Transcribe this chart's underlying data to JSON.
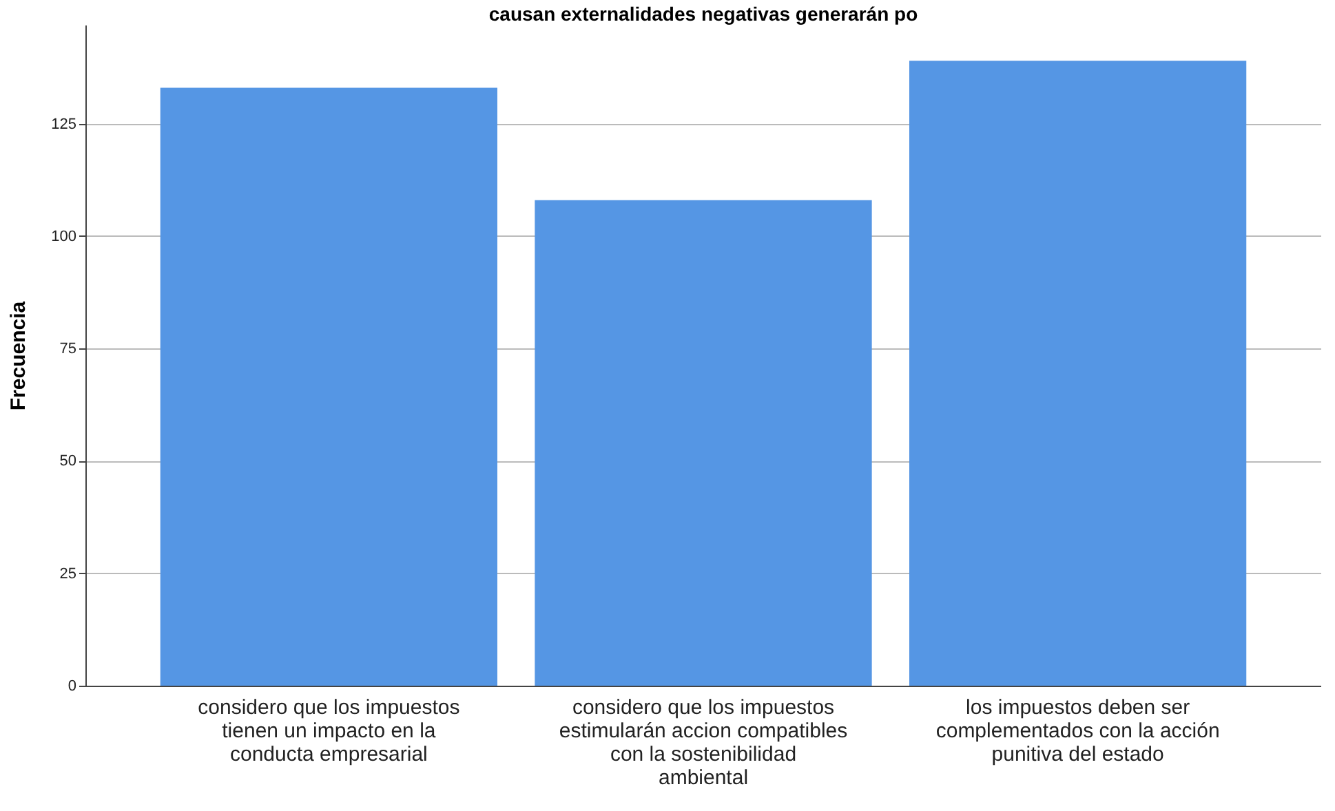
{
  "chart_data": {
    "type": "bar",
    "title": "causan externalidades negativas generarán po",
    "ylabel": "Frecuencia",
    "categories": [
      "considero que los impuestos tienen un impacto en la conducta empresarial",
      "considero que los impuestos estimularán accion compatibles con la sostenibilidad ambiental",
      "los impuestos deben ser complementados con la acción punitiva del estado"
    ],
    "values": [
      133,
      108,
      139
    ],
    "color": "#5596e4",
    "ylim": [
      0,
      147
    ],
    "yticks": [
      0,
      25,
      50,
      75,
      100,
      125
    ],
    "grid": "y"
  }
}
